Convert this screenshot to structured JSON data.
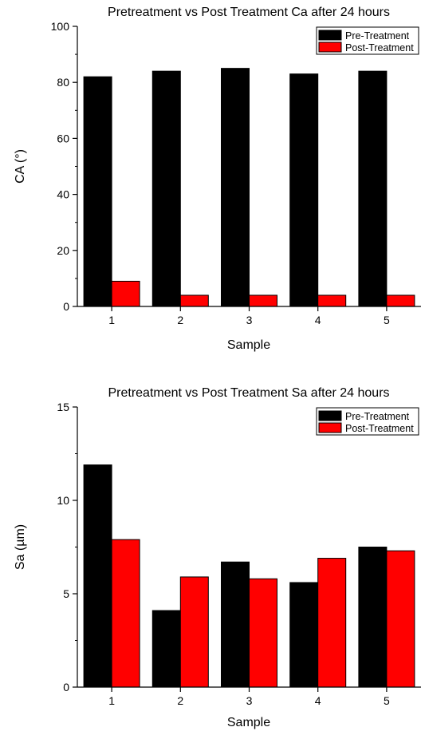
{
  "chart_data": [
    {
      "type": "bar",
      "title": "Pretreatment vs Post Treatment Ca after 24 hours",
      "xlabel": "Sample",
      "ylabel": "CA (°)",
      "categories": [
        "1",
        "2",
        "3",
        "4",
        "5"
      ],
      "ylim": [
        0,
        100
      ],
      "yticks": [
        "0",
        "20",
        "40",
        "60",
        "80",
        "100"
      ],
      "series": [
        {
          "name": "Pre-Treatment",
          "color": "#000000",
          "values": [
            82,
            84,
            85,
            83,
            84
          ]
        },
        {
          "name": "Post-Treatment",
          "color": "#ff0000",
          "values": [
            9,
            4,
            4,
            4,
            4
          ]
        }
      ],
      "legend": "top-right",
      "grid": false
    },
    {
      "type": "bar",
      "title": "Pretreatment vs Post Treatment Sa after 24 hours",
      "xlabel": "Sample",
      "ylabel": "Sa (µm)",
      "categories": [
        "1",
        "2",
        "3",
        "4",
        "5"
      ],
      "ylim": [
        0,
        15
      ],
      "yticks": [
        "0",
        "5",
        "10",
        "15"
      ],
      "series": [
        {
          "name": "Pre-Treatment",
          "color": "#000000",
          "values": [
            11.9,
            4.1,
            6.7,
            5.6,
            7.5
          ]
        },
        {
          "name": "Post-Treatment",
          "color": "#ff0000",
          "values": [
            7.9,
            5.9,
            5.8,
            6.9,
            7.3
          ]
        }
      ],
      "legend": "top-right",
      "grid": false
    }
  ]
}
